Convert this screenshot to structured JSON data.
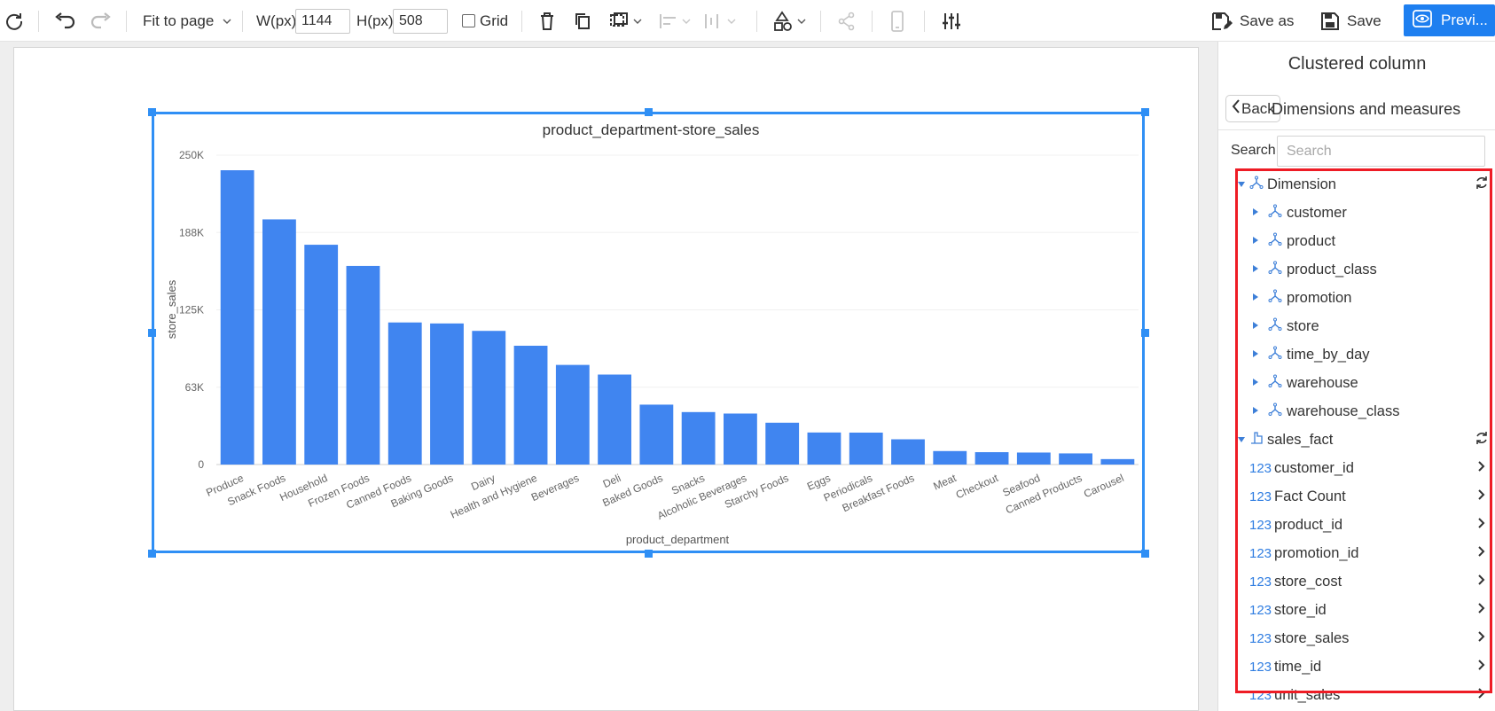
{
  "toolbar": {
    "fit_label": "Fit to page",
    "width_label": "W(px)",
    "width_value": "1144",
    "height_label": "H(px)",
    "height_value": "508",
    "grid_label": "Grid",
    "save_as_label": "Save as",
    "save_label": "Save",
    "preview_label": "Previ..."
  },
  "panel": {
    "title": "Clustered column",
    "back_label": "Back",
    "section_title": "Dimensions and measures",
    "search_label": "Search",
    "search_placeholder": "Search",
    "dimension_group": "Dimension",
    "dimensions": [
      "customer",
      "product",
      "product_class",
      "promotion",
      "store",
      "time_by_day",
      "warehouse",
      "warehouse_class"
    ],
    "fact_group": "sales_fact",
    "measure_prefix": "123",
    "measures": [
      "customer_id",
      "Fact Count",
      "product_id",
      "promotion_id",
      "store_cost",
      "store_id",
      "store_sales",
      "time_id",
      "unit_sales"
    ]
  },
  "colors": {
    "accent": "#1e7ff0",
    "bar": "#4085f0",
    "selection": "#2f8ff5",
    "highlight": "#ee1c25"
  },
  "chart_data": {
    "type": "bar",
    "title": "product_department-store_sales",
    "xlabel": "product_department",
    "ylabel": "store_sales",
    "ylim": [
      0,
      250000
    ],
    "yticks": [
      "0",
      "63K",
      "125K",
      "188K",
      "250K"
    ],
    "ytick_values": [
      0,
      62500,
      125000,
      187500,
      250000
    ],
    "categories": [
      "Produce",
      "Snack Foods",
      "Household",
      "Frozen Foods",
      "Canned Foods",
      "Baking Goods",
      "Dairy",
      "Health and Hygiene",
      "Beverages",
      "Deli",
      "Baked Goods",
      "Snacks",
      "Alcoholic Beverages",
      "Starchy Foods",
      "Eggs",
      "Periodicals",
      "Breakfast Foods",
      "Meat",
      "Checkout",
      "Seafood",
      "Canned Products",
      "Carousel"
    ],
    "values": [
      237800,
      198100,
      177600,
      160500,
      114800,
      114000,
      108000,
      96000,
      80500,
      72700,
      48400,
      42400,
      41200,
      33800,
      25900,
      25800,
      20400,
      10900,
      10000,
      9700,
      9000,
      4400
    ],
    "grid": true,
    "legend": "none"
  }
}
